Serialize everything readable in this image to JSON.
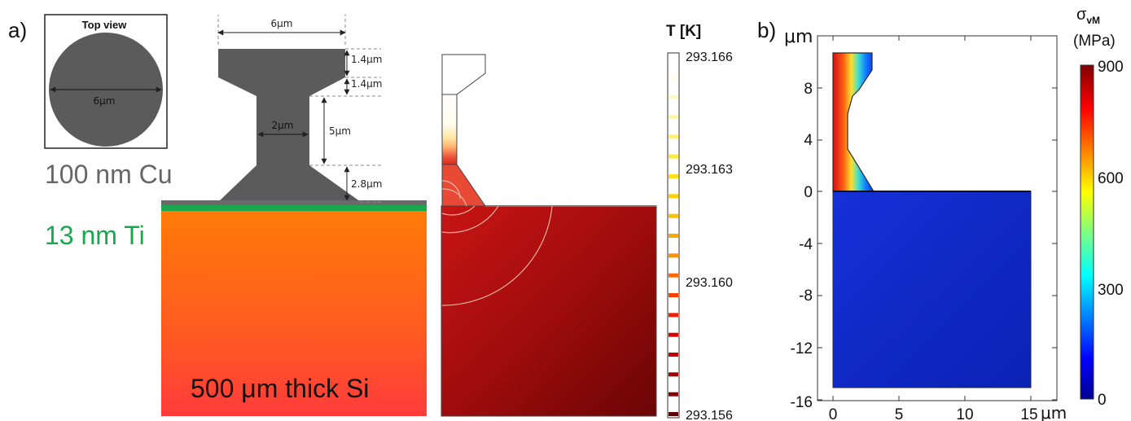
{
  "panel_a": {
    "label": "a)",
    "top_view": {
      "title": "Top view",
      "diameter_label": "6μm"
    },
    "dims": {
      "width": "6μm",
      "cap": "1.4μm",
      "taper": "1.4μm",
      "neck_len": "5μm",
      "neck_width": "2μm",
      "base": "2.8μm"
    },
    "layers": {
      "cu": "100 nm Cu",
      "ti": "13 nm Ti",
      "si": "500 μm thick Si"
    },
    "colors": {
      "cu": "#5b5b5b",
      "ti": "#19a84e",
      "si_top": "#ff7a0a",
      "si_bottom": "#ff3a3a"
    },
    "temperature": {
      "title": "T [K]",
      "ticks": [
        "293.166",
        "293.163",
        "293.160",
        "293.156"
      ]
    }
  },
  "panel_b": {
    "label": "b)",
    "y_unit": "μm",
    "x_unit": "μm",
    "y_ticks": [
      "8",
      "4",
      "0",
      "-4",
      "-8",
      "-12",
      "-16"
    ],
    "x_ticks": [
      "0",
      "5",
      "10",
      "15"
    ],
    "colorbar": {
      "symbol": "σ",
      "subscript": "vM",
      "unit": "(MPa)",
      "ticks": [
        "900",
        "600",
        "300",
        "0"
      ]
    }
  }
}
